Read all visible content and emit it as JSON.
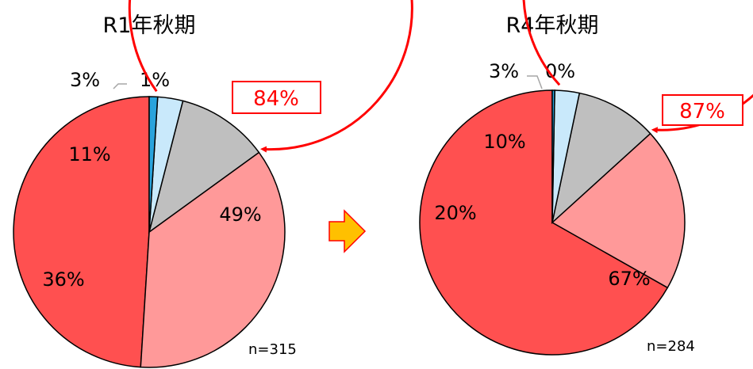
{
  "colors": {
    "c1": "#ff5050",
    "c2": "#ff9999",
    "c3": "#bfbfbf",
    "c4": "#c9e9fb",
    "c5": "#29a3dc",
    "outline": "#000000",
    "highlight": "#ff0000",
    "arrow": "#ffc000",
    "arrowStroke": "#ff0000"
  },
  "chart_data": [
    {
      "type": "pie",
      "title": "R1年秋期",
      "values": [
        49,
        36,
        11,
        3,
        1
      ],
      "value_labels": [
        "49%",
        "36%",
        "11%",
        "3%",
        "1%"
      ],
      "slice_colors": [
        "c1",
        "c2",
        "c3",
        "c4",
        "c5"
      ],
      "highlight": {
        "label": "84%",
        "slices": [
          0,
          1
        ]
      },
      "note": "n=315"
    },
    {
      "type": "pie",
      "title": "R4年秋期",
      "values": [
        67,
        20,
        10,
        3,
        0.3
      ],
      "value_labels": [
        "67%",
        "20%",
        "10%",
        "3%",
        "0%"
      ],
      "slice_colors": [
        "c1",
        "c2",
        "c3",
        "c4",
        "c5"
      ],
      "highlight": {
        "label": "87%",
        "slices": [
          0,
          1
        ]
      },
      "note": "n=284"
    }
  ]
}
